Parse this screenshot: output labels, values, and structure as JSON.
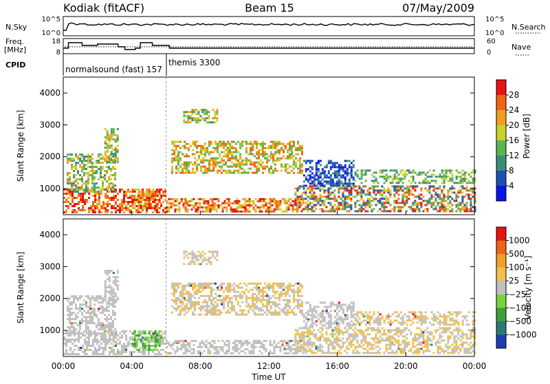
{
  "header": {
    "station": "Kodiak (fitACF)",
    "beam": "Beam 15",
    "date": "07/May/2009"
  },
  "top_panel": {
    "left_label": "N.Sky",
    "right_label": "N.Search",
    "ticks_left": [
      "10^5",
      "10^0"
    ],
    "ticks_right": [
      "10^5",
      "10^0"
    ]
  },
  "freq_panel": {
    "left_label_1": "Freq.",
    "left_label_2": "[MHz]",
    "right_label": "Nave",
    "ticks_left": [
      "18",
      "8"
    ],
    "ticks_right": [
      "60",
      "0"
    ]
  },
  "cpid": {
    "label": "CPID",
    "programs": [
      {
        "name": "normalsound (fast) 157",
        "start_hour": 0,
        "end_hour": 6
      },
      {
        "name": "themis 3300",
        "start_hour": 6,
        "end_hour": 24
      }
    ]
  },
  "chart_data": [
    {
      "type": "heatmap",
      "name": "Power",
      "ylabel": "Slant Range [km]",
      "xlabel": "",
      "xlim": [
        0,
        24
      ],
      "ylim": [
        180,
        4500
      ],
      "yticks": [
        "1000",
        "2000",
        "3000",
        "4000"
      ],
      "colorbar": {
        "label": "Power [dB]",
        "ticks": [
          "4",
          "8",
          "12",
          "16",
          "20",
          "24",
          "28"
        ],
        "colors": [
          "#0a14e6",
          "#1e50b4",
          "#3c8c78",
          "#5ab450",
          "#c8d228",
          "#f0a01e",
          "#f06414",
          "#e61414"
        ]
      }
    },
    {
      "type": "heatmap",
      "name": "Velocity",
      "ylabel": "Slant Range [km]",
      "xlabel": "Time UT",
      "xlim": [
        0,
        24
      ],
      "ylim": [
        180,
        4500
      ],
      "yticks": [
        "1000",
        "2000",
        "3000",
        "4000"
      ],
      "xticks": [
        "00:00",
        "04:00",
        "08:00",
        "12:00",
        "16:00",
        "20:00",
        "00:00"
      ],
      "colorbar": {
        "label": "Velocity [m s⁻¹]",
        "ticks": [
          "1000",
          "500",
          "100",
          "25",
          "−25",
          "−100",
          "−500",
          "−1000"
        ],
        "colors": [
          "#1e3cb4",
          "#2d7878",
          "#3ca03c",
          "#78d23c",
          "#c0c0c0",
          "#f0c050",
          "#f0a028",
          "#f06414",
          "#e61414"
        ]
      }
    }
  ]
}
